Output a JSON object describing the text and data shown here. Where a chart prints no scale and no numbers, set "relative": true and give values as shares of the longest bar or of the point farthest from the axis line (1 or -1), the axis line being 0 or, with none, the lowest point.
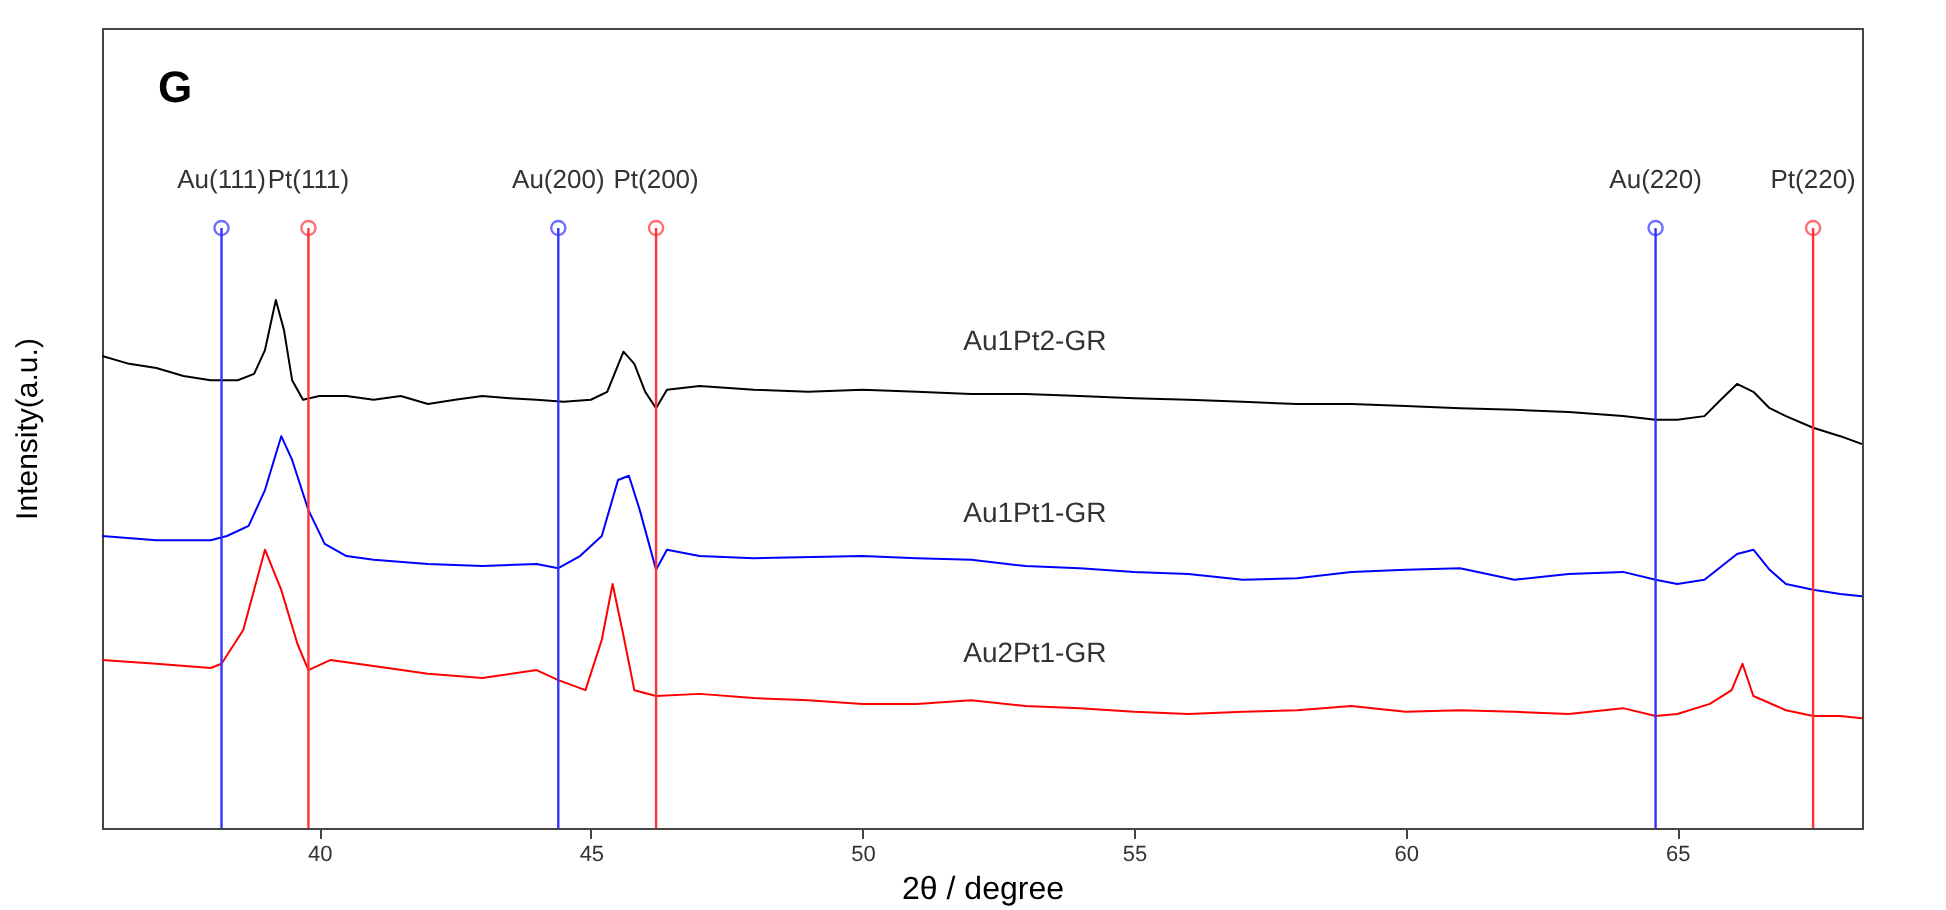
{
  "chart_data": {
    "type": "line",
    "relative": true,
    "xlabel": "2θ / degree",
    "ylabel": "Intensity(a.u.)",
    "annotations": [
      "G"
    ],
    "xlim": [
      36,
      68.4
    ],
    "xticks": [
      40,
      45,
      50,
      55,
      60,
      65
    ],
    "grid": false,
    "legend": false,
    "marker": "none",
    "line_style": "solid",
    "ref_lines": [
      {
        "axis": "x",
        "value": 38.2,
        "label": "Au(111)",
        "color": "#3333ff"
      },
      {
        "axis": "x",
        "value": 39.8,
        "label": "Pt(111)",
        "color": "#ff3333"
      },
      {
        "axis": "x",
        "value": 44.4,
        "label": "Au(200)",
        "color": "#3333ff"
      },
      {
        "axis": "x",
        "value": 46.2,
        "label": "Pt(200)",
        "color": "#ff3333"
      },
      {
        "axis": "x",
        "value": 64.6,
        "label": "Au(220)",
        "color": "#3333ff"
      },
      {
        "axis": "x",
        "value": 67.5,
        "label": "Pt(220)",
        "color": "#ff3333"
      }
    ],
    "series": [
      {
        "name": "Au1Pt2-GR",
        "color": "#000000",
        "x": [
          36,
          36.5,
          37,
          37.5,
          38,
          38.5,
          38.8,
          39,
          39.2,
          39.35,
          39.5,
          39.7,
          40,
          40.5,
          41,
          41.5,
          42,
          42.5,
          43,
          43.5,
          44,
          44.5,
          45,
          45.3,
          45.6,
          45.8,
          46,
          46.2,
          46.4,
          47,
          48,
          49,
          50,
          51,
          52,
          53,
          54,
          55,
          56,
          57,
          58,
          59,
          60,
          61,
          62,
          63,
          64,
          64.6,
          65,
          65.5,
          65.8,
          66.1,
          66.4,
          66.7,
          67,
          67.5,
          68,
          68.4
        ],
        "values": [
          0.894,
          0.879,
          0.871,
          0.856,
          0.848,
          0.848,
          0.86,
          0.905,
          1,
          0.943,
          0.848,
          0.811,
          0.818,
          0.818,
          0.811,
          0.818,
          0.803,
          0.811,
          0.818,
          0.814,
          0.811,
          0.807,
          0.811,
          0.826,
          0.902,
          0.879,
          0.826,
          0.795,
          0.83,
          0.837,
          0.83,
          0.826,
          0.83,
          0.826,
          0.822,
          0.822,
          0.818,
          0.814,
          0.811,
          0.807,
          0.803,
          0.803,
          0.799,
          0.795,
          0.792,
          0.788,
          0.78,
          0.773,
          0.773,
          0.78,
          0.811,
          0.841,
          0.826,
          0.795,
          0.78,
          0.758,
          0.742,
          0.727
        ]
      },
      {
        "name": "Au1Pt1-GR",
        "color": "#0000ff",
        "x": [
          36,
          37,
          38,
          38.3,
          38.7,
          39,
          39.3,
          39.5,
          39.8,
          40.1,
          40.5,
          41,
          42,
          43,
          44,
          44.4,
          44.8,
          45.2,
          45.5,
          45.7,
          45.9,
          46.2,
          46.4,
          47,
          48,
          50,
          51,
          52,
          53,
          54,
          55,
          56,
          57,
          58,
          59,
          60,
          61,
          62,
          63,
          64,
          64.6,
          65,
          65.5,
          66.1,
          66.4,
          66.7,
          67,
          67.5,
          68,
          68.4
        ],
        "values": [
          0.553,
          0.545,
          0.545,
          0.553,
          0.572,
          0.64,
          0.742,
          0.697,
          0.602,
          0.538,
          0.515,
          0.508,
          0.5,
          0.496,
          0.5,
          0.492,
          0.515,
          0.553,
          0.659,
          0.667,
          0.602,
          0.489,
          0.527,
          0.515,
          0.511,
          0.515,
          0.511,
          0.508,
          0.496,
          0.492,
          0.485,
          0.481,
          0.47,
          0.473,
          0.485,
          0.489,
          0.492,
          0.47,
          0.481,
          0.485,
          0.47,
          0.462,
          0.47,
          0.519,
          0.527,
          0.489,
          0.462,
          0.451,
          0.443,
          0.439
        ]
      },
      {
        "name": "Au2Pt1-GR",
        "color": "#ff0000",
        "x": [
          36,
          37,
          38,
          38.2,
          38.6,
          39,
          39.3,
          39.6,
          39.8,
          40.2,
          41,
          42,
          43,
          44,
          44.4,
          44.9,
          45.2,
          45.4,
          45.6,
          45.8,
          46.2,
          47,
          48,
          49,
          50,
          51,
          52,
          53,
          54,
          55,
          56,
          57,
          58,
          59,
          60,
          61,
          62,
          63,
          64,
          64.6,
          65,
          65.6,
          66,
          66.2,
          66.4,
          67,
          67.5,
          68,
          68.4
        ],
        "values": [
          0.318,
          0.311,
          0.303,
          0.311,
          0.375,
          0.527,
          0.451,
          0.348,
          0.299,
          0.318,
          0.307,
          0.292,
          0.284,
          0.299,
          0.28,
          0.261,
          0.356,
          0.462,
          0.364,
          0.261,
          0.25,
          0.254,
          0.246,
          0.242,
          0.235,
          0.235,
          0.242,
          0.231,
          0.227,
          0.22,
          0.216,
          0.22,
          0.223,
          0.231,
          0.22,
          0.223,
          0.22,
          0.216,
          0.227,
          0.212,
          0.216,
          0.235,
          0.261,
          0.311,
          0.25,
          0.223,
          0.212,
          0.212,
          0.208
        ]
      }
    ]
  }
}
